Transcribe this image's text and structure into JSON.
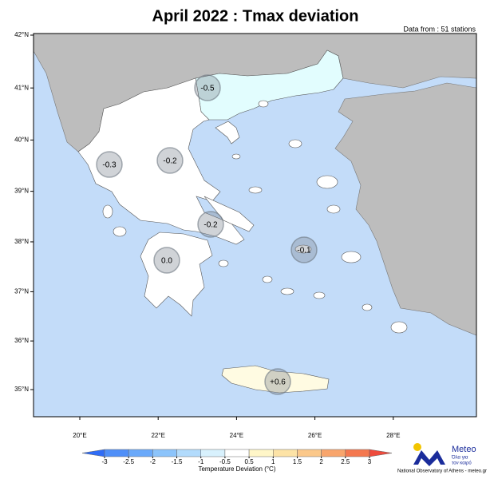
{
  "title": "April 2022 : Tmax deviation",
  "subtitle": "Data from : 51 stations",
  "lat_ticks": [
    {
      "value": 42,
      "label": "42°N"
    },
    {
      "value": 41,
      "label": "41°N"
    },
    {
      "value": 40,
      "label": "40°N"
    },
    {
      "value": 39,
      "label": "39°N"
    },
    {
      "value": 38,
      "label": "38°N"
    },
    {
      "value": 37,
      "label": "37°N"
    },
    {
      "value": 36,
      "label": "36°N"
    },
    {
      "value": 35,
      "label": "35°N"
    }
  ],
  "lon_ticks": [
    {
      "value": 20,
      "label": "20°E"
    },
    {
      "value": 22,
      "label": "22°E"
    },
    {
      "value": 24,
      "label": "24°E"
    },
    {
      "value": 26,
      "label": "26°E"
    },
    {
      "value": 28,
      "label": "28°E"
    }
  ],
  "regions": {
    "values": [
      -0.5,
      -0.3,
      -0.2,
      -0.2,
      0.0,
      -0.1,
      0.6
    ],
    "value_labels": [
      "-0.5",
      "-0.3",
      "-0.2",
      "-0.2",
      "0.0",
      "-0.1",
      "+0.6"
    ]
  },
  "colorbar": {
    "title": "Temperature Deviation (°C)",
    "ticks": [
      -3,
      -2.5,
      -2,
      -1.5,
      -1,
      -0.5,
      0.5,
      1,
      1.5,
      2,
      2.5,
      3
    ],
    "colors": [
      "#2f6cf6",
      "#4f8ff8",
      "#6aa9fa",
      "#8cc4fb",
      "#b2dbfc",
      "#d8f1fd",
      "#ffffff",
      "#fff6c8",
      "#fde3a6",
      "#fbc88a",
      "#f8a56c",
      "#f4784f",
      "#ee4b3d"
    ]
  },
  "logo": {
    "name": "Meteo",
    "tagline_1": "Όλα για",
    "tagline_2": "τον καιρό"
  },
  "footer": "National Observatory of Athens - meteo.gr"
}
